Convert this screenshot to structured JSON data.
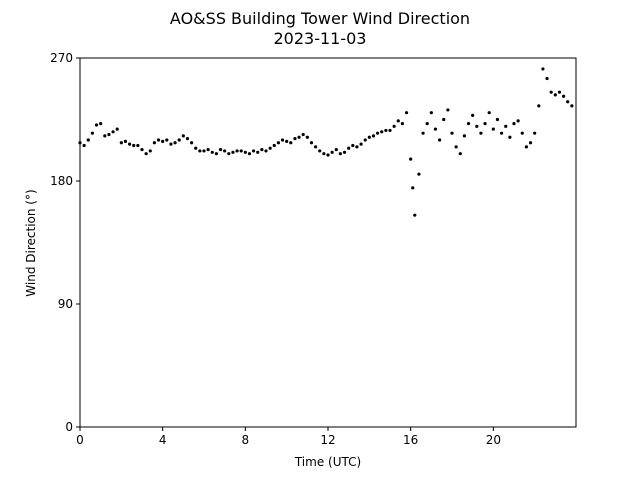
{
  "chart_data": {
    "type": "scatter",
    "title": "AO&SS Building Tower Wind Direction",
    "subtitle": "2023-11-03",
    "x_label": "Time (UTC)",
    "y_label": "Wind Direction (°)",
    "color": "#000000",
    "xlim": [
      0,
      24
    ],
    "xticks": [
      0,
      4,
      8,
      12,
      16,
      20
    ],
    "ylim": [
      0,
      270
    ],
    "yticks": [
      0,
      90,
      180,
      270
    ],
    "x": [
      0,
      0.2,
      0.4,
      0.6,
      0.8,
      1.0,
      1.2,
      1.4,
      1.6,
      1.8,
      2.0,
      2.2,
      2.4,
      2.6,
      2.8,
      3.0,
      3.2,
      3.4,
      3.6,
      3.8,
      4.0,
      4.2,
      4.4,
      4.6,
      4.8,
      5.0,
      5.2,
      5.4,
      5.6,
      5.8,
      6.0,
      6.2,
      6.4,
      6.6,
      6.8,
      7.0,
      7.2,
      7.4,
      7.6,
      7.8,
      8.0,
      8.2,
      8.4,
      8.6,
      8.8,
      9.0,
      9.2,
      9.4,
      9.6,
      9.8,
      10.0,
      10.2,
      10.4,
      10.6,
      10.8,
      11.0,
      11.2,
      11.4,
      11.6,
      11.8,
      12.0,
      12.2,
      12.4,
      12.6,
      12.8,
      13.0,
      13.2,
      13.4,
      13.6,
      13.8,
      14.0,
      14.2,
      14.4,
      14.6,
      14.8,
      15.0,
      15.2,
      15.4,
      15.6,
      15.8,
      16.0,
      16.1,
      16.2,
      16.4,
      16.6,
      16.8,
      17.0,
      17.2,
      17.4,
      17.6,
      17.8,
      18.0,
      18.2,
      18.4,
      18.6,
      18.8,
      19.0,
      19.2,
      19.4,
      19.6,
      19.8,
      20.0,
      20.2,
      20.4,
      20.6,
      20.8,
      21.0,
      21.2,
      21.4,
      21.6,
      21.8,
      22.0,
      22.2,
      22.4,
      22.6,
      22.8,
      23.0,
      23.2,
      23.4,
      23.6,
      23.8
    ],
    "values": [
      208,
      206,
      210,
      215,
      221,
      222,
      213,
      214,
      216,
      218,
      208,
      209,
      207,
      206,
      206,
      203,
      200,
      202,
      208,
      210,
      209,
      210,
      207,
      208,
      210,
      213,
      211,
      208,
      204,
      202,
      202,
      203,
      201,
      200,
      203,
      202,
      200,
      201,
      202,
      202,
      201,
      200,
      202,
      201,
      203,
      202,
      204,
      206,
      208,
      210,
      209,
      208,
      211,
      212,
      214,
      212,
      208,
      205,
      202,
      200,
      199,
      201,
      203,
      200,
      201,
      204,
      206,
      205,
      207,
      210,
      212,
      213,
      215,
      216,
      217,
      217,
      220,
      224,
      222,
      230,
      196,
      175,
      155,
      185,
      215,
      222,
      230,
      218,
      210,
      225,
      232,
      215,
      205,
      200,
      213,
      222,
      228,
      220,
      215,
      222,
      230,
      218,
      225,
      215,
      220,
      212,
      222,
      224,
      215,
      205,
      208,
      215,
      235,
      262,
      255,
      245,
      243,
      245,
      242,
      238,
      235
    ]
  }
}
